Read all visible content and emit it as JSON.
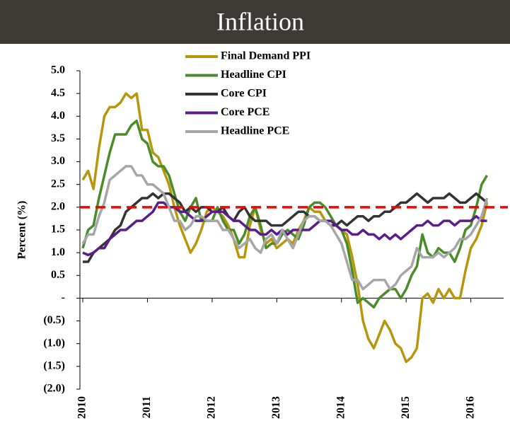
{
  "chart_data": {
    "type": "line",
    "title": "Inflation",
    "y_label": "Percent (%)",
    "categories": [
      "2010",
      null,
      null,
      null,
      null,
      null,
      null,
      null,
      null,
      null,
      null,
      null,
      "2011",
      null,
      null,
      null,
      null,
      null,
      null,
      null,
      null,
      null,
      null,
      null,
      "2012",
      null,
      null,
      null,
      null,
      null,
      null,
      null,
      null,
      null,
      null,
      null,
      "2013",
      null,
      null,
      null,
      null,
      null,
      null,
      null,
      null,
      null,
      null,
      null,
      "2014",
      null,
      null,
      null,
      null,
      null,
      null,
      null,
      null,
      null,
      null,
      null,
      "2015",
      null,
      null,
      null,
      null,
      null,
      null,
      null,
      null,
      null,
      null,
      null,
      "2016",
      null,
      null,
      null
    ],
    "ylim": [
      -2,
      5
    ],
    "yticks": [
      {
        "value": -2,
        "label": "(2.0)"
      },
      {
        "value": -1.5,
        "label": "(1.5)"
      },
      {
        "value": -1,
        "label": "(1.0)"
      },
      {
        "value": -0.5,
        "label": "(0.5)"
      },
      {
        "value": 0,
        "label": "-"
      },
      {
        "value": 0.5,
        "label": "0.5"
      },
      {
        "value": 1,
        "label": "1.0"
      },
      {
        "value": 1.5,
        "label": "1.5"
      },
      {
        "value": 2,
        "label": "2.0"
      },
      {
        "value": 2.5,
        "label": "2.5"
      },
      {
        "value": 3,
        "label": "3.0"
      },
      {
        "value": 3.5,
        "label": "3.5"
      },
      {
        "value": 4,
        "label": "4.0"
      },
      {
        "value": 4.5,
        "label": "4.5"
      },
      {
        "value": 5,
        "label": "5.0"
      }
    ],
    "reference_line": {
      "value": 2,
      "color": "#ff0000"
    },
    "series": [
      {
        "name": "Final Demand PPI",
        "color": "#b8960c",
        "values": [
          2.6,
          2.8,
          2.4,
          3.3,
          4.0,
          4.2,
          4.2,
          4.3,
          4.5,
          4.4,
          4.5,
          3.7,
          3.7,
          3.2,
          3.1,
          2.8,
          2.5,
          2.0,
          1.6,
          1.3,
          1.0,
          1.2,
          1.5,
          1.9,
          2.0,
          1.9,
          1.8,
          1.6,
          1.3,
          0.9,
          0.9,
          1.6,
          2.0,
          1.5,
          1.2,
          1.3,
          1.1,
          1.2,
          1.3,
          1.2,
          1.5,
          1.7,
          2.0,
          1.9,
          1.9,
          1.7,
          1.6,
          1.6,
          1.5,
          1.4,
          0.9,
          0.3,
          -0.5,
          -0.9,
          -1.1,
          -0.8,
          -0.5,
          -0.7,
          -1.0,
          -1.1,
          -1.4,
          -1.3,
          -1.1,
          0.0,
          0.1,
          -0.1,
          0.2,
          0.0,
          0.2,
          0.0,
          0.0,
          0.6,
          1.1,
          1.3,
          1.6,
          2.1
        ]
      },
      {
        "name": "Headline CPI",
        "color": "#4a8c2a",
        "values": [
          1.1,
          1.5,
          1.6,
          2.2,
          2.7,
          3.2,
          3.6,
          3.6,
          3.6,
          3.8,
          3.9,
          3.5,
          3.4,
          3.0,
          2.9,
          2.9,
          2.7,
          2.3,
          1.9,
          1.7,
          2.0,
          2.2,
          1.7,
          1.7,
          1.7,
          2.0,
          1.7,
          1.5,
          1.5,
          1.2,
          1.4,
          1.8,
          2.0,
          1.6,
          1.1,
          1.2,
          1.2,
          1.4,
          1.5,
          1.4,
          1.3,
          1.6,
          2.0,
          2.1,
          2.1,
          2.0,
          1.8,
          1.6,
          1.5,
          1.2,
          0.6,
          -0.1,
          0.0,
          -0.1,
          -0.2,
          0.0,
          0.1,
          0.2,
          0.2,
          0.0,
          0.2,
          0.5,
          0.7,
          1.4,
          1.0,
          0.9,
          1.1,
          1.0,
          1.0,
          0.8,
          1.1,
          1.5,
          1.6,
          2.0,
          2.5,
          2.7
        ]
      },
      {
        "name": "Core CPI",
        "color": "#333333",
        "values": [
          0.8,
          0.8,
          1.0,
          1.1,
          1.2,
          1.3,
          1.5,
          1.6,
          1.9,
          2.0,
          2.1,
          2.2,
          2.2,
          2.3,
          2.2,
          2.3,
          2.3,
          2.2,
          2.1,
          1.9,
          2.0,
          1.9,
          2.0,
          2.0,
          1.9,
          1.9,
          2.0,
          1.8,
          1.7,
          1.9,
          2.0,
          1.8,
          1.7,
          1.7,
          1.7,
          1.6,
          1.6,
          1.6,
          1.7,
          1.8,
          1.9,
          1.9,
          1.8,
          1.8,
          1.7,
          1.7,
          1.6,
          1.6,
          1.7,
          1.6,
          1.7,
          1.8,
          1.8,
          1.7,
          1.8,
          1.8,
          1.9,
          1.9,
          2.0,
          2.1,
          2.1,
          2.2,
          2.3,
          2.2,
          2.1,
          2.2,
          2.2,
          2.2,
          2.3,
          2.2,
          2.1,
          2.1,
          2.2,
          2.3,
          2.2,
          2.1
        ]
      },
      {
        "name": "Core PCE",
        "color": "#5b1d8a",
        "values": [
          1.0,
          0.95,
          1.0,
          1.1,
          1.1,
          1.3,
          1.4,
          1.5,
          1.5,
          1.6,
          1.7,
          1.7,
          1.8,
          1.9,
          2.1,
          2.1,
          2.0,
          2.0,
          1.9,
          1.9,
          1.8,
          1.7,
          1.7,
          1.8,
          1.9,
          1.9,
          1.9,
          1.8,
          1.7,
          1.7,
          1.6,
          1.5,
          1.5,
          1.4,
          1.4,
          1.5,
          1.4,
          1.5,
          1.4,
          1.5,
          1.5,
          1.5,
          1.5,
          1.6,
          1.7,
          1.7,
          1.7,
          1.6,
          1.5,
          1.5,
          1.4,
          1.4,
          1.5,
          1.4,
          1.4,
          1.3,
          1.4,
          1.3,
          1.4,
          1.3,
          1.4,
          1.5,
          1.6,
          1.6,
          1.7,
          1.6,
          1.6,
          1.7,
          1.7,
          1.6,
          1.7,
          1.7,
          1.7,
          1.8,
          1.7,
          1.7
        ]
      },
      {
        "name": "Headline PCE",
        "color": "#a6a6a6",
        "values": [
          1.2,
          1.4,
          1.4,
          1.8,
          2.1,
          2.6,
          2.7,
          2.8,
          2.9,
          2.9,
          2.7,
          2.7,
          2.5,
          2.5,
          2.4,
          2.3,
          2.0,
          1.7,
          1.7,
          1.5,
          1.6,
          1.8,
          1.8,
          1.7,
          1.7,
          1.7,
          1.5,
          1.5,
          1.3,
          1.1,
          1.2,
          1.3,
          1.1,
          1.0,
          1.3,
          1.4,
          1.2,
          1.5,
          1.3,
          1.1,
          1.4,
          1.7,
          1.8,
          1.8,
          1.7,
          1.7,
          1.6,
          1.4,
          1.2,
          0.8,
          0.4,
          0.4,
          0.2,
          0.3,
          0.4,
          0.4,
          0.4,
          0.2,
          0.3,
          0.5,
          0.6,
          0.7,
          1.1,
          0.9,
          0.9,
          0.9,
          1.0,
          0.9,
          1.0,
          1.1,
          1.3,
          1.3,
          1.4,
          1.6,
          1.8,
          2.2
        ]
      }
    ]
  }
}
